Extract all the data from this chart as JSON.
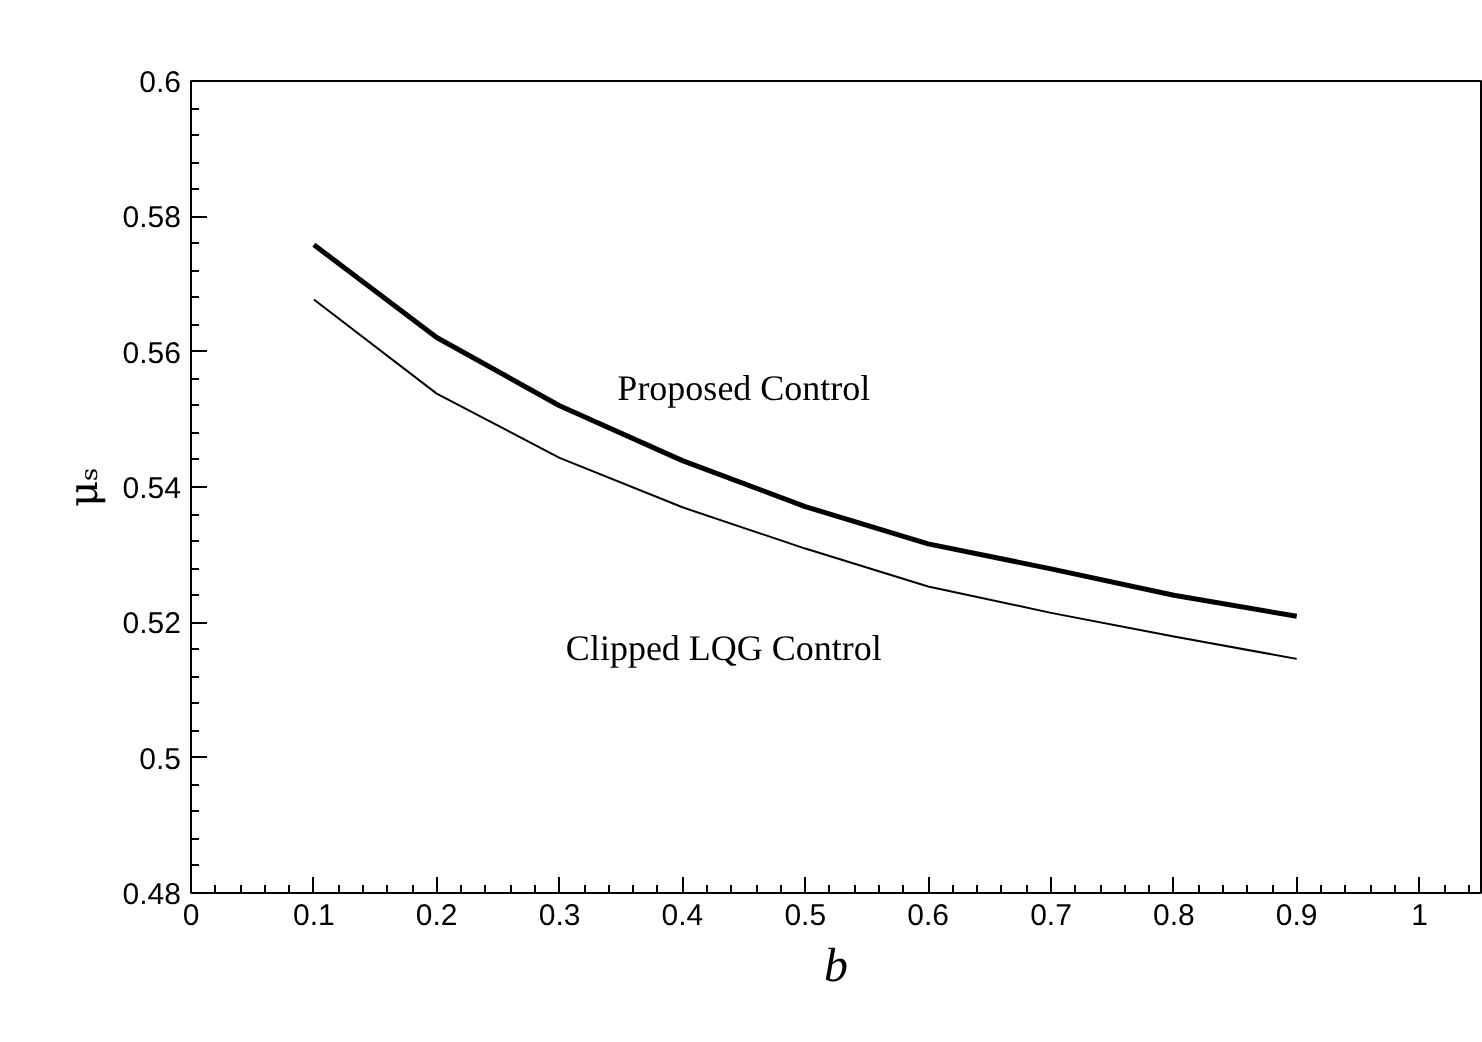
{
  "chart_data": {
    "type": "line",
    "xlabel": "b",
    "ylabel": "μₛ",
    "x": [
      0.1,
      0.2,
      0.3,
      0.4,
      0.5,
      0.6,
      0.7,
      0.8,
      0.9
    ],
    "series": [
      {
        "name": "Proposed Control",
        "color": "#000000",
        "values": [
          0.5758,
          0.5621,
          0.552,
          0.5439,
          0.5371,
          0.5316,
          0.5279,
          0.524,
          0.5209
        ]
      },
      {
        "name": "Clipped LQG Control",
        "color": "#000000",
        "values": [
          0.5677,
          0.5538,
          0.5443,
          0.537,
          0.5309,
          0.5253,
          0.5214,
          0.5179,
          0.5146
        ]
      }
    ],
    "xlim": [
      0,
      1.05
    ],
    "ylim": [
      0.48,
      0.6
    ],
    "xticks": [
      0,
      0.1,
      0.2,
      0.3,
      0.4,
      0.5,
      0.6,
      0.7,
      0.8,
      0.9,
      1
    ],
    "yticks": [
      0.48,
      0.5,
      0.52,
      0.54,
      0.56,
      0.58,
      0.6
    ],
    "grid": false,
    "marker": "none",
    "line_style": "solid"
  }
}
